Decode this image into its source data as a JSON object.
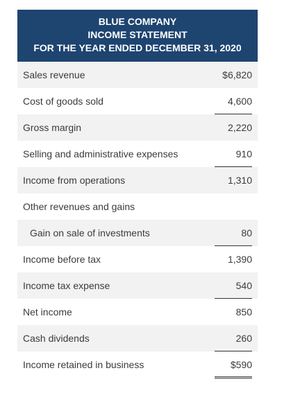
{
  "header": {
    "company": "BLUE COMPANY",
    "statement": "INCOME STATEMENT",
    "period": "FOR THE YEAR ENDED DECEMBER 31, 2020"
  },
  "rows": [
    {
      "label": "Sales revenue",
      "amount": "$6,820"
    },
    {
      "label": "Cost of goods sold",
      "amount": "4,600"
    },
    {
      "label": "Gross margin",
      "amount": "2,220"
    },
    {
      "label": "Selling and administrative expenses",
      "amount": "910"
    },
    {
      "label": "Income from operations",
      "amount": "1,310"
    },
    {
      "label": "Other revenues and gains",
      "amount": ""
    },
    {
      "label": "Gain on sale of investments",
      "amount": "80"
    },
    {
      "label": "Income before tax",
      "amount": "1,390"
    },
    {
      "label": "Income tax expense",
      "amount": "540"
    },
    {
      "label": "Net income",
      "amount": "850"
    },
    {
      "label": "Cash dividends",
      "amount": "260"
    },
    {
      "label": "Income retained in business",
      "amount": "$590"
    }
  ],
  "colors": {
    "header_bg": "#1e4470",
    "header_text": "#ffffff",
    "row_shade": "#f2f2f2",
    "body_text": "#3b3b3b"
  }
}
